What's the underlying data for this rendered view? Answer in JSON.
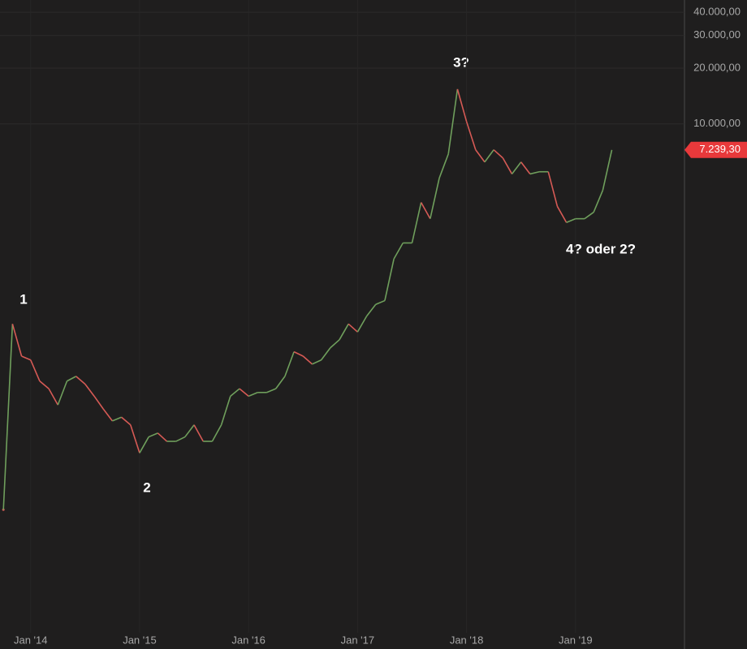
{
  "chart_data": {
    "type": "line",
    "log": true,
    "grid": true,
    "up_color": "#6f9f5c",
    "down_color": "#d65a55",
    "x": [
      "2013-10",
      "2013-11",
      "2013-12",
      "2014-01",
      "2014-02",
      "2014-03",
      "2014-04",
      "2014-05",
      "2014-06",
      "2014-07",
      "2014-08",
      "2014-09",
      "2014-10",
      "2014-11",
      "2014-12",
      "2015-01",
      "2015-02",
      "2015-03",
      "2015-04",
      "2015-05",
      "2015-06",
      "2015-07",
      "2015-08",
      "2015-09",
      "2015-10",
      "2015-11",
      "2015-12",
      "2016-01",
      "2016-02",
      "2016-03",
      "2016-04",
      "2016-05",
      "2016-06",
      "2016-07",
      "2016-08",
      "2016-09",
      "2016-10",
      "2016-11",
      "2016-12",
      "2017-01",
      "2017-02",
      "2017-03",
      "2017-04",
      "2017-05",
      "2017-06",
      "2017-07",
      "2017-08",
      "2017-09",
      "2017-10",
      "2017-11",
      "2017-12",
      "2018-01",
      "2018-02",
      "2018-03",
      "2018-04",
      "2018-05",
      "2018-06",
      "2018-07",
      "2018-08",
      "2018-09",
      "2018-10",
      "2018-11",
      "2018-12",
      "2019-01",
      "2019-02",
      "2019-03",
      "2019-04",
      "2019-05"
    ],
    "values": [
      83,
      834,
      559,
      533,
      410,
      373,
      305,
      410,
      435,
      395,
      340,
      290,
      250,
      262,
      238,
      168,
      205,
      215,
      194,
      194,
      205,
      238,
      194,
      194,
      238,
      340,
      373,
      340,
      356,
      356,
      373,
      435,
      590,
      559,
      506,
      533,
      620,
      685,
      834,
      755,
      918,
      1063,
      1114,
      1870,
      2280,
      2280,
      3770,
      3080,
      5100,
      6890,
      15400,
      10300,
      7250,
      6230,
      7250,
      6550,
      5370,
      6230,
      5370,
      5520,
      5520,
      3590,
      2940,
      3080,
      3080,
      3340,
      4380,
      7239.3
    ],
    "last_value_label": "7.239,30",
    "xlim": [
      "2013-09",
      "2020-01"
    ],
    "xticks": [
      {
        "value": "2014-01",
        "label": "Jan '14"
      },
      {
        "value": "2015-01",
        "label": "Jan '15"
      },
      {
        "value": "2016-01",
        "label": "Jan '16"
      },
      {
        "value": "2017-01",
        "label": "Jan '17"
      },
      {
        "value": "2018-01",
        "label": "Jan '18"
      },
      {
        "value": "2019-01",
        "label": "Jan '19"
      }
    ],
    "ylim": [
      18,
      46600
    ],
    "yticks": [
      {
        "value": 10000,
        "label": "10.000,00"
      },
      {
        "value": 20000,
        "label": "20.000,00"
      },
      {
        "value": 30000,
        "label": "30.000,00"
      },
      {
        "value": 40000,
        "label": "40.000,00"
      }
    ],
    "annotations": [
      "1",
      "2",
      "3?",
      "4? oder 2?"
    ]
  }
}
